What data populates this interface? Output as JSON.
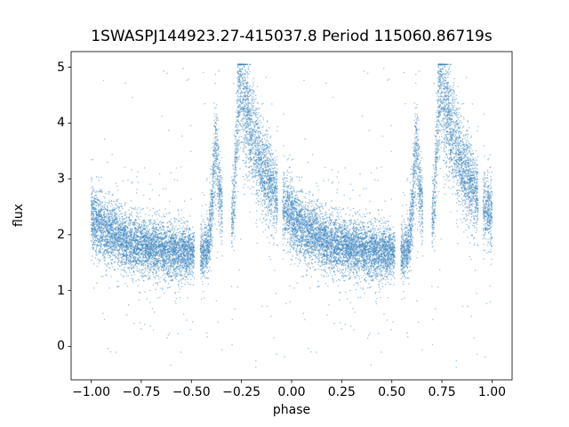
{
  "title": "1SWASPJ144923.27-415037.8 Period 115060.86719s",
  "chart_data": {
    "type": "scatter",
    "title": "1SWASPJ144923.27-415037.8 Period 115060.86719s",
    "xlabel": "phase",
    "ylabel": "flux",
    "xlim": [
      -1.1,
      1.1
    ],
    "ylim": [
      -0.6,
      5.28
    ],
    "xticks": [
      -1.0,
      -0.75,
      -0.5,
      -0.25,
      0.0,
      0.25,
      0.5,
      0.75,
      1.0
    ],
    "xtick_labels": [
      "−1.00",
      "−0.75",
      "−0.50",
      "−0.25",
      "0.00",
      "0.25",
      "0.50",
      "0.75",
      "1.00"
    ],
    "yticks": [
      0,
      1,
      2,
      3,
      4,
      5
    ],
    "ytick_labels": [
      "0",
      "1",
      "2",
      "3",
      "4",
      "5"
    ],
    "grid": false,
    "legend": null,
    "marker": {
      "color": "#3d85c0",
      "alpha": 0.5,
      "size": 1.3
    },
    "n_points": 9500,
    "seed": 7,
    "description": "Folded light curve plotted over phase -1 to 1 (pattern repeats with period 1.0). Flat baseline near flux 1.65, a sharp precursor brightening near phase -0.375/0.625 reaching ~3.6, a main outburst peaking near phase -0.255/0.745 reaching ~4.7-5.0, followed by an exponential decay through phase 0.0 (~2.3) back to baseline by ~0.25. Sparse outlier halo between flux ~0 and ~5.",
    "model": {
      "baseline": 1.65,
      "main_peak": {
        "phase": 0.745,
        "amplitude": 3.0,
        "rise_sigma": 0.022,
        "decay_tau": 0.17
      },
      "precursor_peak": {
        "phase": 0.625,
        "amplitude": 1.9,
        "rise_sigma": 0.018,
        "decay_tau": 0.03
      },
      "multiplicative_scatter": 0.12,
      "additive_scatter": 0.1,
      "halo_fraction": 0.07,
      "halo_scatter": 0.55,
      "outlier_fraction": 0.012,
      "outlier_range": [
        -0.4,
        5.0
      ],
      "flux_min": -0.45,
      "flux_max": 5.05,
      "phase_gaps": [
        [
          0.515,
          0.545
        ],
        [
          0.655,
          0.7
        ],
        [
          0.93,
          0.955
        ]
      ]
    }
  }
}
